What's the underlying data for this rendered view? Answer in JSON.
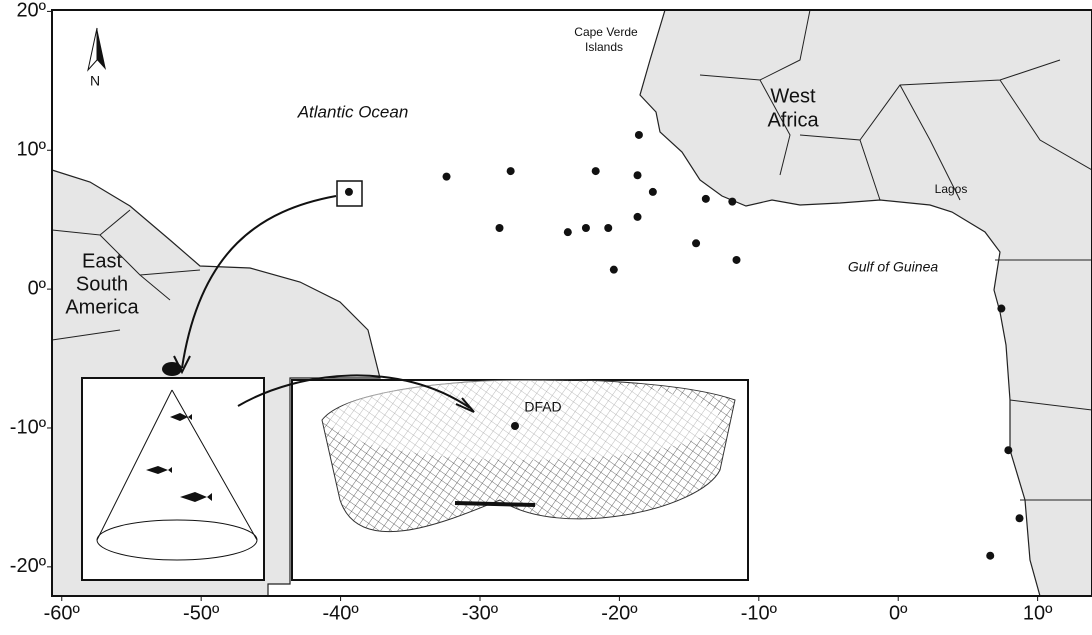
{
  "map": {
    "xlim": [
      -60.7,
      13.9
    ],
    "ylim": [
      -22.1,
      20.1
    ],
    "xticks": [
      {
        "value": -60,
        "label": "-60º"
      },
      {
        "value": -50,
        "label": "-50º"
      },
      {
        "value": -40,
        "label": "-40º"
      },
      {
        "value": -30,
        "label": "-30º"
      },
      {
        "value": -20,
        "label": "-20º"
      },
      {
        "value": -10,
        "label": "-10º"
      },
      {
        "value": 0,
        "label": "0º"
      },
      {
        "value": 10,
        "label": "10º"
      }
    ],
    "yticks": [
      {
        "value": 20,
        "label": "20º"
      },
      {
        "value": 10,
        "label": "10º"
      },
      {
        "value": 0,
        "label": "0º"
      },
      {
        "value": -10,
        "label": "-10º"
      },
      {
        "value": -20,
        "label": "-20º"
      }
    ],
    "points": {
      "lon": [
        -39.4,
        -32.4,
        -27.8,
        -28.6,
        -23.7,
        -22.4,
        -21.7,
        -20.8,
        -20.4,
        -18.6,
        -18.7,
        -17.6,
        -18.7,
        -14.5,
        -13.8,
        -11.9,
        -11.6,
        7.4,
        7.9,
        8.7,
        6.6
      ],
      "lat": [
        7.0,
        8.1,
        8.5,
        4.4,
        4.1,
        4.4,
        8.5,
        4.4,
        1.4,
        11.1,
        8.2,
        7.0,
        5.2,
        3.3,
        6.5,
        6.3,
        2.1,
        -1.4,
        -11.6,
        -16.5,
        -19.2
      ]
    },
    "labels": {
      "north": "N",
      "cape_verde": [
        "Cape Verde",
        "Islands"
      ],
      "atlantic": "Atlantic Ocean",
      "west_africa": [
        "West",
        "Africa"
      ],
      "lagos": "Lagos",
      "gulf": "Gulf of Guinea",
      "south_america": [
        "East",
        "South",
        "America"
      ],
      "dfad": "DFAD"
    }
  }
}
